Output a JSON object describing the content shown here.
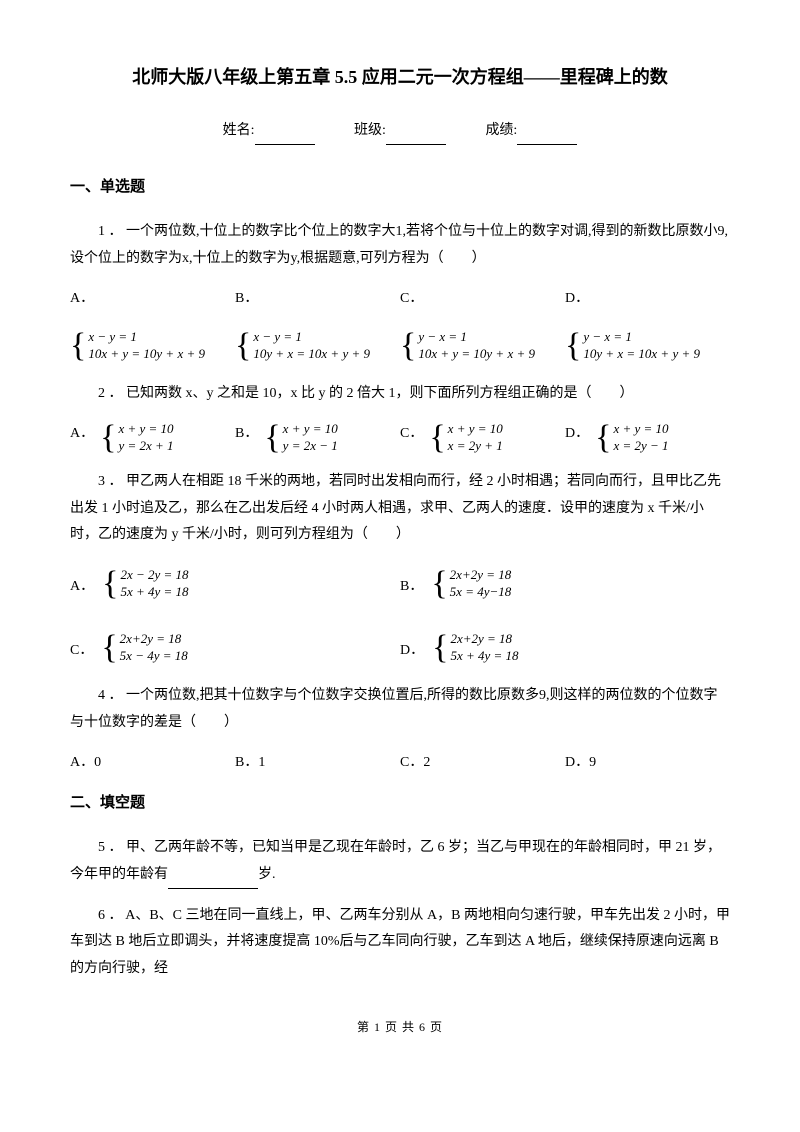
{
  "title": "北师大版八年级上第五章 5.5 应用二元一次方程组——里程碑上的数",
  "info": {
    "name_label": "姓名:",
    "class_label": "班级:",
    "score_label": "成绩:"
  },
  "section1": "一、单选题",
  "q1": {
    "text": "1 ． 一个两位数,十位上的数字比个位上的数字大1,若将个位与十位上的数字对调,得到的新数比原数小9,设个位上的数字为x,十位上的数字为y,根据题意,可列方程为（　　）",
    "A": "A．",
    "B": "B．",
    "C": "C．",
    "D": "D．",
    "eqA1": "x − y = 1",
    "eqA2": "10x + y = 10y + x + 9",
    "eqB1": "x − y = 1",
    "eqB2": "10y + x = 10x + y + 9",
    "eqC1": "y − x = 1",
    "eqC2": "10x + y = 10y + x + 9",
    "eqD1": "y − x = 1",
    "eqD2": "10y + x = 10x + y + 9"
  },
  "q2": {
    "text": "2 ． 已知两数 x、y 之和是 10，x 比 y 的 2 倍大 1，则下面所列方程组正确的是（　　）",
    "A": "A．",
    "B": "B．",
    "C": "C．",
    "D": "D．",
    "eqA1": "x + y = 10",
    "eqA2": "y = 2x + 1",
    "eqB1": "x + y = 10",
    "eqB2": "y = 2x − 1",
    "eqC1": "x + y = 10",
    "eqC2": "x = 2y + 1",
    "eqD1": "x + y = 10",
    "eqD2": "x = 2y − 1"
  },
  "q3": {
    "text": "3 ． 甲乙两人在相距 18 千米的两地，若同时出发相向而行，经 2 小时相遇；若同向而行，且甲比乙先出发 1 小时追及乙，那么在乙出发后经 4 小时两人相遇，求甲、乙两人的速度．设甲的速度为 x 千米/小时，乙的速度为 y 千米/小时，则可列方程组为（　　）",
    "A": "A．",
    "B": "B．",
    "C": "C．",
    "D": "D．",
    "eqA1": "2x − 2y = 18",
    "eqA2": "5x + 4y = 18",
    "eqB1": "2x+2y = 18",
    "eqB2": "5x = 4y−18",
    "eqC1": "2x+2y = 18",
    "eqC2": "5x − 4y = 18",
    "eqD1": "2x+2y = 18",
    "eqD2": "5x + 4y = 18"
  },
  "q4": {
    "text": "4 ． 一个两位数,把其十位数字与个位数字交换位置后,所得的数比原数多9,则这样的两位数的个位数字与十位数字的差是（　　）",
    "A": "A．0",
    "B": "B．1",
    "C": "C．2",
    "D": "D．9"
  },
  "section2": "二、填空题",
  "q5": {
    "text_pre": "5 ． 甲、乙两年龄不等，已知当甲是乙现在年龄时，乙 6 岁；当乙与甲现在的年龄相同时，甲 21 岁，今年甲的年龄有",
    "text_post": "岁."
  },
  "q6": {
    "text": "6 ． A、B、C 三地在同一直线上，甲、乙两车分别从 A，B 两地相向匀速行驶，甲车先出发 2 小时，甲车到达 B 地后立即调头，并将速度提高 10%后与乙车同向行驶，乙车到达 A 地后，继续保持原速向远离 B 的方向行驶，经"
  },
  "footer": "第 1 页 共 6 页"
}
